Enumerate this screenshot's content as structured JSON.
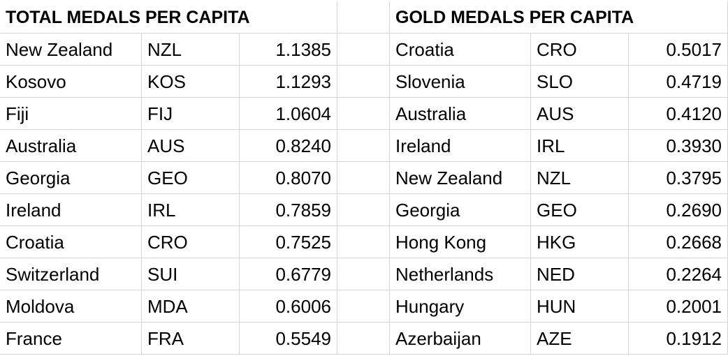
{
  "tables": [
    {
      "title": "TOTAL MEDALS PER CAPITA",
      "rows": [
        [
          "New Zealand",
          "NZL",
          "1.1385"
        ],
        [
          "Kosovo",
          "KOS",
          "1.1293"
        ],
        [
          "Fiji",
          "FIJ",
          "1.0604"
        ],
        [
          "Australia",
          "AUS",
          "0.8240"
        ],
        [
          "Georgia",
          "GEO",
          "0.8070"
        ],
        [
          "Ireland",
          "IRL",
          "0.7859"
        ],
        [
          "Croatia",
          "CRO",
          "0.7525"
        ],
        [
          "Switzerland",
          "SUI",
          "0.6779"
        ],
        [
          "Moldova",
          "MDA",
          "0.6006"
        ],
        [
          "France",
          "FRA",
          "0.5549"
        ]
      ]
    },
    {
      "title": "GOLD MEDALS PER CAPITA",
      "rows": [
        [
          "Croatia",
          "CRO",
          "0.5017"
        ],
        [
          "Slovenia",
          "SLO",
          "0.4719"
        ],
        [
          "Australia",
          "AUS",
          "0.4120"
        ],
        [
          "Ireland",
          "IRL",
          "0.3930"
        ],
        [
          "New Zealand",
          "NZL",
          "0.3795"
        ],
        [
          "Georgia",
          "GEO",
          "0.2690"
        ],
        [
          "Hong Kong",
          "HKG",
          "0.2668"
        ],
        [
          "Netherlands",
          "NED",
          "0.2264"
        ],
        [
          "Hungary",
          "HUN",
          "0.2001"
        ],
        [
          "Azerbaijan",
          "AZE",
          "0.1912"
        ]
      ]
    }
  ]
}
